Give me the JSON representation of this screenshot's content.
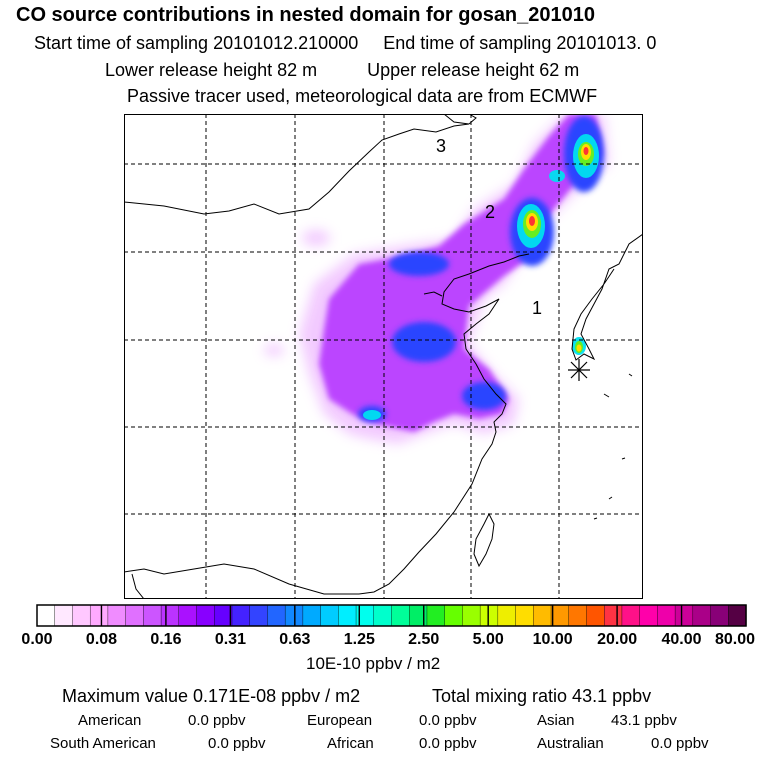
{
  "header": {
    "title": "CO  source contributions in nested domain for gosan_201010",
    "start_label": "Start time of sampling 20101012.210000",
    "end_label": "End time of sampling 20101013.     0",
    "lower_label": "Lower release height   82 m",
    "upper_label": "Upper release height   62 m",
    "tracer_note": "Passive tracer used, meteorological data are from ECMWF"
  },
  "map": {
    "markers": [
      "1",
      "2",
      "3"
    ]
  },
  "colorbar": {
    "colors": [
      "#ffffff",
      "#ffe8ff",
      "#ffc8ff",
      "#ffaaff",
      "#f08cff",
      "#e070ff",
      "#cc55ff",
      "#bb33ff",
      "#aa11ff",
      "#8800ff",
      "#6600ff",
      "#4422ff",
      "#3344ff",
      "#2266ff",
      "#1188ff",
      "#00aaff",
      "#00ccff",
      "#00eeff",
      "#00ffee",
      "#00ffcc",
      "#00ff99",
      "#00ee66",
      "#22ee22",
      "#66ff00",
      "#99ff00",
      "#ccff00",
      "#eeee00",
      "#ffdd00",
      "#ffbb00",
      "#ff9900",
      "#ff7700",
      "#ff5500",
      "#ff3344",
      "#ff1188",
      "#ff00aa",
      "#ee00aa",
      "#cc0099",
      "#aa0088",
      "#880077",
      "#550044"
    ],
    "tick_labels": [
      "0.00",
      "0.08",
      "0.16",
      "0.31",
      "0.63",
      "1.25",
      "2.50",
      "5.00",
      "10.00",
      "20.00",
      "40.00",
      "80.00"
    ],
    "units": "10E-10 ppbv / m2"
  },
  "summary": {
    "max_label": "Maximum value  0.171E-08 ppbv / m2",
    "total_label": "Total mixing ratio       43.1 ppbv",
    "regions": [
      {
        "name": "American",
        "value": "0.0 ppbv"
      },
      {
        "name": "European",
        "value": "0.0 ppbv"
      },
      {
        "name": "Asian",
        "value": "43.1 ppbv"
      },
      {
        "name": "South American",
        "value": "0.0 ppbv"
      },
      {
        "name": "African",
        "value": "0.0 ppbv"
      },
      {
        "name": "Australian",
        "value": "0.0 ppbv"
      }
    ]
  }
}
